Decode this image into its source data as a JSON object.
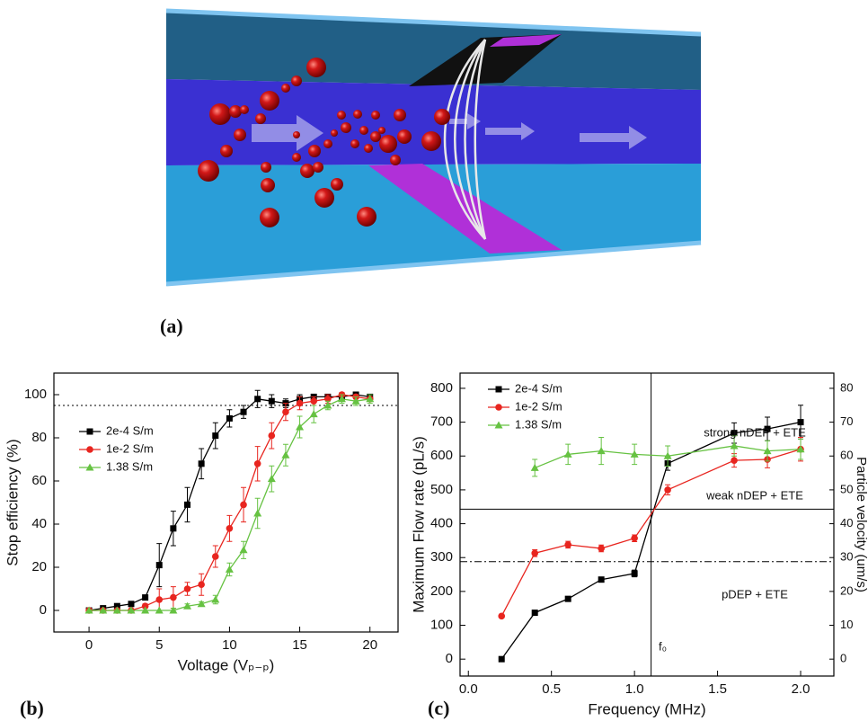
{
  "panel_labels": [
    "(a)",
    "(b)",
    "(c)"
  ],
  "chart_data": [
    {
      "type": "line",
      "xlabel": "Voltage (Vₚ₋ₚ)",
      "ylabel": "Stop efficiency (%)",
      "x": [
        0,
        1,
        2,
        3,
        4,
        5,
        6,
        7,
        8,
        9,
        10,
        11,
        12,
        13,
        14,
        15,
        16,
        17,
        18,
        19,
        20
      ],
      "series": [
        {
          "name": "2e-4 S/m",
          "color": "#000000",
          "marker": "square",
          "values": [
            0,
            1,
            2,
            3,
            6,
            21,
            38,
            49,
            68,
            81,
            89,
            92,
            98,
            97,
            96,
            98,
            99,
            99,
            99,
            100,
            99
          ],
          "errors": [
            null,
            null,
            null,
            1,
            1,
            10,
            8,
            8,
            7,
            6,
            4,
            3,
            4,
            3,
            2,
            2,
            1,
            1,
            1,
            1,
            1
          ]
        },
        {
          "name": "1e-2 S/m",
          "color": "#e8251f",
          "marker": "circle",
          "values": [
            0,
            0,
            0,
            0,
            2,
            5,
            6,
            10,
            12,
            25,
            38,
            49,
            68,
            81,
            92,
            96,
            97,
            98,
            100,
            99,
            98
          ],
          "errors": [
            null,
            null,
            null,
            null,
            1,
            5,
            5,
            3,
            5,
            5,
            6,
            8,
            8,
            6,
            4,
            3,
            2,
            2,
            1,
            1,
            1
          ]
        },
        {
          "name": "1.38 S/m",
          "color": "#66c242",
          "marker": "triangle",
          "values": [
            0,
            0,
            0,
            0,
            0,
            0,
            0,
            2,
            3,
            5,
            19,
            28,
            45,
            61,
            72,
            85,
            91,
            95,
            98,
            97,
            98
          ],
          "errors": [
            null,
            null,
            null,
            null,
            null,
            null,
            1,
            1,
            1,
            2,
            3,
            4,
            7,
            6,
            5,
            5,
            4,
            2,
            2,
            2,
            2
          ]
        }
      ],
      "xlim": [
        -2.5,
        22
      ],
      "xticks": [
        0,
        5,
        10,
        15,
        20
      ],
      "ylim": [
        -10,
        110
      ],
      "yticks": [
        0,
        20,
        40,
        60,
        80,
        100
      ],
      "hlines": [
        {
          "value": 95,
          "style": "dotted"
        }
      ],
      "legend": "upper-left"
    },
    {
      "type": "line",
      "xlabel": "Frequency (MHz)",
      "ylabel": "Maximum Flow rate (pL/s)",
      "y2label": "Particle velocity (um/s)",
      "series": [
        {
          "name": "2e-4 S/m",
          "color": "#000000",
          "marker": "square",
          "x": [
            0.2,
            0.4,
            0.6,
            0.8,
            1.0,
            1.2,
            1.6,
            1.8,
            2.0
          ],
          "values": [
            0,
            137,
            178,
            235,
            253,
            578,
            668,
            680,
            700
          ],
          "errors": [
            null,
            null,
            null,
            null,
            10,
            20,
            30,
            35,
            50
          ]
        },
        {
          "name": "1e-2 S/m",
          "color": "#e8251f",
          "marker": "circle",
          "x": [
            0.2,
            0.4,
            0.6,
            0.8,
            1.0,
            1.2,
            1.6,
            1.8,
            2.0
          ],
          "values": [
            127,
            313,
            338,
            327,
            357,
            500,
            587,
            590,
            620
          ],
          "errors": [
            null,
            10,
            10,
            10,
            10,
            15,
            20,
            25,
            35
          ]
        },
        {
          "name": "1.38 S/m",
          "color": "#66c242",
          "marker": "triangle",
          "axis": "y2",
          "x": [
            0.4,
            0.6,
            0.8,
            1.0,
            1.2,
            1.6,
            1.8,
            2.0
          ],
          "values": [
            56.5,
            60.5,
            61.5,
            60.5,
            60,
            63,
            61.5,
            62
          ],
          "errors": [
            2.5,
            3,
            4,
            3,
            3,
            3,
            3,
            3
          ]
        }
      ],
      "xlim": [
        -0.05,
        2.2
      ],
      "xticks": [
        {
          "value": 0,
          "label": "0.0"
        },
        0.5,
        {
          "value": 1,
          "label": "1.0"
        },
        1.5,
        {
          "value": 2,
          "label": "2.0"
        }
      ],
      "ylim": [
        -50,
        845
      ],
      "yticks": [
        0,
        100,
        200,
        300,
        400,
        500,
        600,
        700,
        800
      ],
      "y2lim": [
        -5,
        84.5
      ],
      "y2ticks": [
        0,
        10,
        20,
        30,
        40,
        50,
        60,
        70,
        80
      ],
      "hlines": [
        {
          "value": 443,
          "style": "solid"
        },
        {
          "value": 288,
          "style": "dashdot"
        }
      ],
      "vlines": [
        {
          "value": 1.1,
          "style": "solid"
        }
      ],
      "annotations": [
        "strong nDEP + ETE",
        "weak nDEP + ETE",
        "pDEP + ETE",
        "f₀"
      ],
      "legend": "upper-left"
    }
  ]
}
